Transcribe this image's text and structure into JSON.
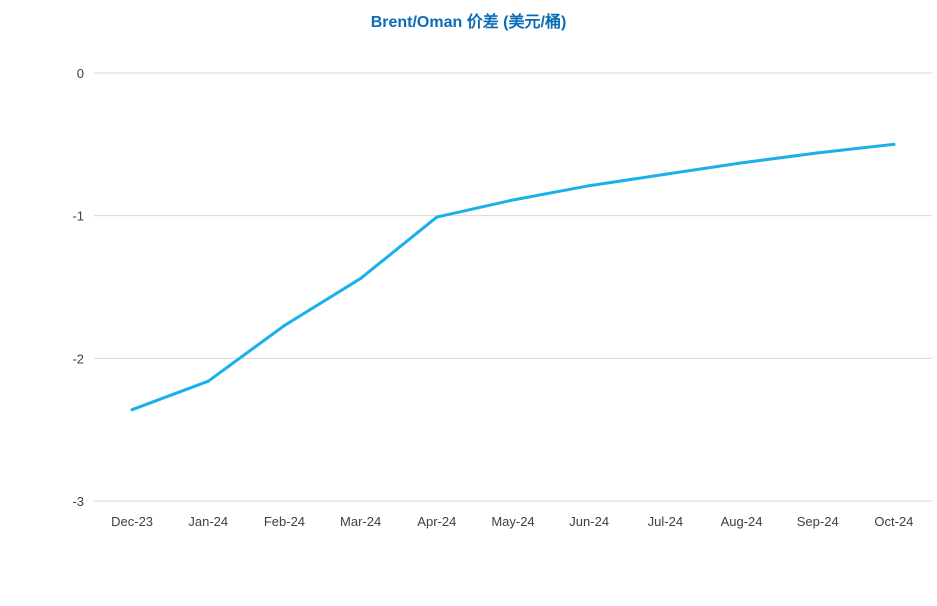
{
  "chart_data": {
    "type": "line",
    "title": "Brent/Oman 价差 (美元/桶)",
    "xlabel": "",
    "ylabel": "",
    "categories": [
      "Dec-23",
      "Jan-24",
      "Feb-24",
      "Mar-24",
      "Apr-24",
      "May-24",
      "Jun-24",
      "Jul-24",
      "Aug-24",
      "Sep-24",
      "Oct-24"
    ],
    "series": [
      {
        "values": [
          -2.36,
          -2.16,
          -1.77,
          -1.44,
          -1.01,
          -0.89,
          -0.79,
          -0.71,
          -0.63,
          -0.56,
          -0.5
        ],
        "color": "#1ab0ea"
      }
    ],
    "ylim": [
      -3,
      0
    ],
    "yticks": [
      0,
      -1,
      -2,
      -3
    ],
    "grid": true,
    "legend": "none",
    "colors": {
      "line": "#1ab0ea",
      "title": "#0b6cb6",
      "grid": "#d9d9d9",
      "axis_text": "#404040"
    }
  }
}
